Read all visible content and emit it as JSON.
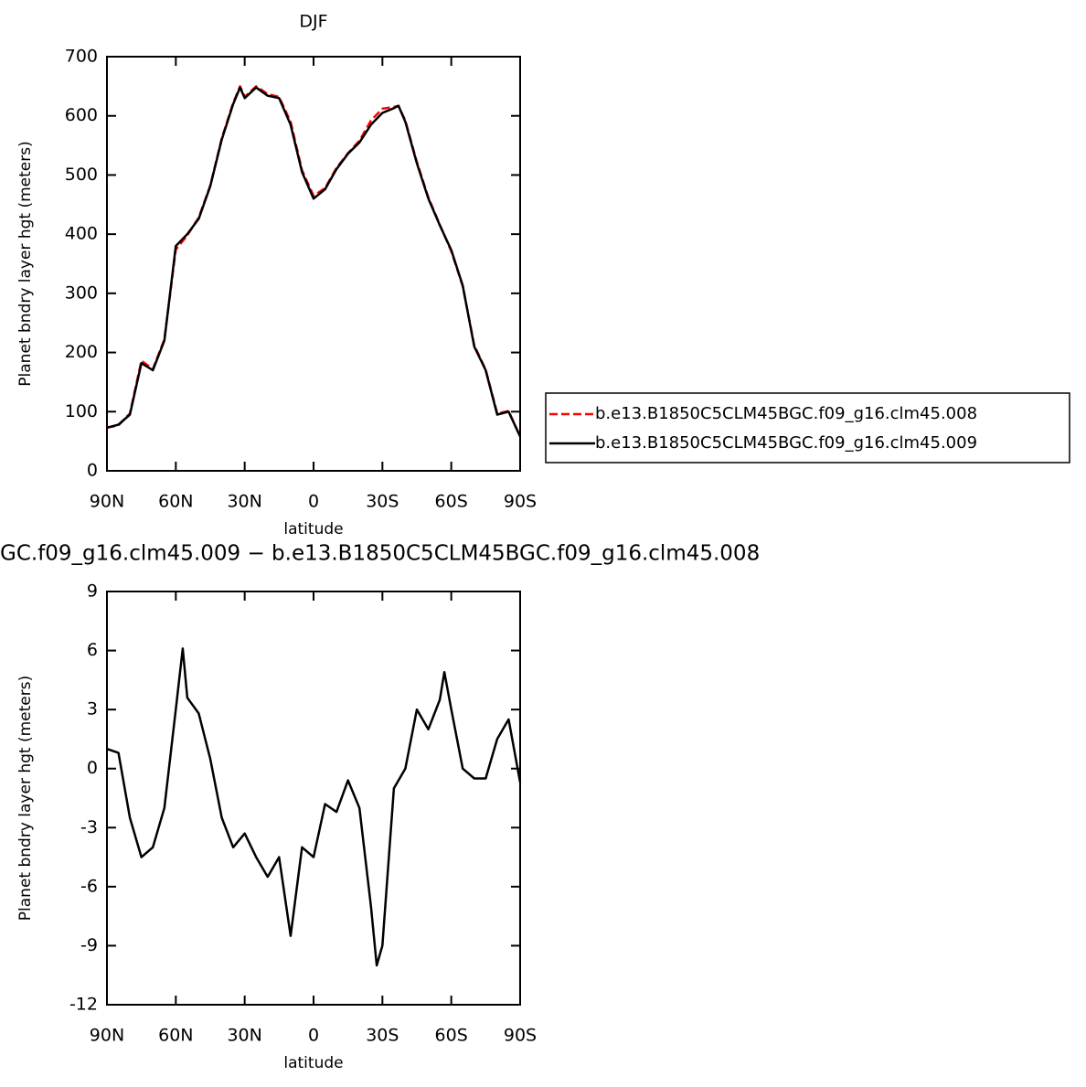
{
  "chart_data": [
    {
      "type": "line",
      "title": "DJF",
      "xlabel": "latitude",
      "ylabel": "Planet bndry layer hgt (meters)",
      "x": [
        90,
        85,
        80,
        75,
        70,
        65,
        60,
        55,
        50,
        45,
        40,
        35,
        32,
        30,
        25,
        20,
        15,
        10,
        5,
        0,
        -5,
        -10,
        -15,
        -20,
        -25,
        -30,
        -35,
        -37,
        -40,
        -45,
        -50,
        -55,
        -60,
        -65,
        -70,
        -75,
        -80,
        -85,
        -90
      ],
      "series": [
        {
          "name": "b.e13.B1850C5CLM45BGC.f09_g16.clm45.008",
          "color": "#ff0000",
          "dash": true,
          "values": [
            73,
            77,
            97,
            186,
            172,
            222,
            374,
            398,
            428,
            482,
            562,
            622,
            650,
            632,
            650,
            637,
            632,
            590,
            508,
            465,
            478,
            512,
            537,
            558,
            592,
            612,
            615,
            617,
            592,
            522,
            462,
            416,
            371,
            312,
            212,
            171,
            97,
            101,
            58
          ]
        },
        {
          "name": "b.e13.B1850C5CLM45BGC.f09_g16.clm45.009",
          "color": "#000000",
          "dash": false,
          "values": [
            73,
            78,
            95,
            182,
            170,
            220,
            380,
            400,
            426,
            481,
            560,
            620,
            648,
            630,
            648,
            634,
            630,
            585,
            505,
            460,
            476,
            510,
            536,
            555,
            585,
            605,
            613,
            617,
            590,
            520,
            460,
            415,
            373,
            313,
            210,
            170,
            95,
            100,
            58
          ]
        }
      ],
      "xlim": [
        90,
        -90
      ],
      "xticks": [
        {
          "value": 90,
          "label": "90N"
        },
        {
          "value": 60,
          "label": "60N"
        },
        {
          "value": 30,
          "label": "30N"
        },
        0,
        {
          "value": -30,
          "label": "30S"
        },
        {
          "value": -60,
          "label": "60S"
        },
        {
          "value": -90,
          "label": "90S"
        }
      ],
      "ylim": [
        0,
        700
      ],
      "yticks": [
        0,
        100,
        200,
        300,
        400,
        500,
        600,
        700
      ],
      "legend": "right"
    },
    {
      "type": "line",
      "title": "GC.f09_g16.clm45.009 − b.e13.B1850C5CLM45BGC.f09_g16.clm45.008",
      "xlabel": "latitude",
      "ylabel": "Planet bndry layer hgt (meters)",
      "x": [
        90,
        85,
        80,
        75,
        70,
        65,
        60,
        57,
        55,
        50,
        45,
        40,
        35,
        30,
        25,
        20,
        15,
        10,
        5,
        0,
        -5,
        -10,
        -15,
        -20,
        -25,
        -27.5,
        -30,
        -35,
        -40,
        -45,
        -50,
        -55,
        -57,
        -60,
        -65,
        -70,
        -75,
        -80,
        -85,
        -90
      ],
      "series": [
        {
          "color": "#000000",
          "dash": false,
          "values": [
            1.0,
            0.8,
            -2.5,
            -4.5,
            -4.0,
            -2.0,
            3.0,
            6.1,
            3.6,
            2.8,
            0.5,
            -2.5,
            -4.0,
            -3.3,
            -4.5,
            -5.5,
            -4.5,
            -8.5,
            -4.0,
            -4.5,
            -1.8,
            -2.2,
            -0.6,
            -2.0,
            -7.0,
            -10.0,
            -9.0,
            -1.0,
            0.0,
            3.0,
            2.0,
            3.5,
            4.9,
            3.0,
            0.0,
            -0.5,
            -0.5,
            1.5,
            2.5,
            -0.7
          ]
        }
      ],
      "xlim": [
        90,
        -90
      ],
      "xticks": [
        {
          "value": 90,
          "label": "90N"
        },
        {
          "value": 60,
          "label": "60N"
        },
        {
          "value": 30,
          "label": "30N"
        },
        0,
        {
          "value": -30,
          "label": "30S"
        },
        {
          "value": -60,
          "label": "60S"
        },
        {
          "value": -90,
          "label": "90S"
        }
      ],
      "ylim": [
        -12,
        9
      ],
      "yticks": [
        -12,
        -9,
        -6,
        -3,
        0,
        3,
        6,
        9
      ]
    }
  ]
}
